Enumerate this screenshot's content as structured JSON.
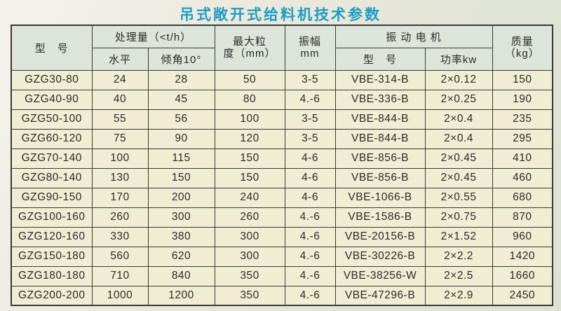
{
  "title": "吊式敞开式给料机技术参数",
  "colors": {
    "title_text": "#1f9cc4",
    "header_cell_bg": "#dde4d9",
    "data_cell_bg": "#f0edd3",
    "grid_line": "#3a3a38",
    "page_bg": "#e7e9dd"
  },
  "table": {
    "header": {
      "model": "型　号",
      "capacity_group": "处理量（<t/h）",
      "capacity_horizontal": "水平",
      "capacity_incline": "倾角10°",
      "max_size_line1": "最大粒",
      "max_size_line2": "度（mm）",
      "amplitude_line1": "振幅",
      "amplitude_line2": "mm",
      "motor_group": "振 动 电 机",
      "motor_model": "型　号",
      "motor_power": "功率kw",
      "mass_line1": "质量",
      "mass_line2": "（kg）"
    },
    "rows": [
      [
        "GZG30-80",
        "24",
        "28",
        "50",
        "3-5",
        "VBE-314-B",
        "2×0.12",
        "150"
      ],
      [
        "GZG40-90",
        "40",
        "45",
        "80",
        "4.-6",
        "VBE-336-B",
        "2×0.25",
        "190"
      ],
      [
        "GZG50-100",
        "55",
        "56",
        "100",
        "3-5",
        "VBE-844-B",
        "2×0.4",
        "235"
      ],
      [
        "GZG60-120",
        "75",
        "90",
        "120",
        "3-5",
        "VBE-844-B",
        "2×0.4",
        "295"
      ],
      [
        "GZG70-140",
        "100",
        "115",
        "150",
        "4-6",
        "VBE-856-B",
        "2×0.45",
        "410"
      ],
      [
        "GZG80-140",
        "130",
        "150",
        "150",
        "4-6",
        "VBE-856-B",
        "2×0.45",
        "460"
      ],
      [
        "GZG90-150",
        "170",
        "200",
        "240",
        "4-6",
        "VBE-1066-B",
        "2×0.55",
        "680"
      ],
      [
        "GZG100-160",
        "260",
        "300",
        "260",
        "4.-6",
        "VBE-1586-B",
        "2×0.75",
        "870"
      ],
      [
        "GZG120-160",
        "330",
        "380",
        "300",
        "4.-6",
        "VBE-20156-B",
        "2×1.52",
        "960"
      ],
      [
        "GZG150-180",
        "560",
        "620",
        "300",
        "4.-6",
        "VBE-30226-B",
        "2×2.2",
        "1420"
      ],
      [
        "GZG180-180",
        "710",
        "840",
        "350",
        "4.-6",
        "VBE-38256-W",
        "2×2.5",
        "1660"
      ],
      [
        "GZG200-200",
        "1000",
        "1200",
        "350",
        "4.-6",
        "VBE-47296-B",
        "2×2.9",
        "2450"
      ]
    ]
  }
}
